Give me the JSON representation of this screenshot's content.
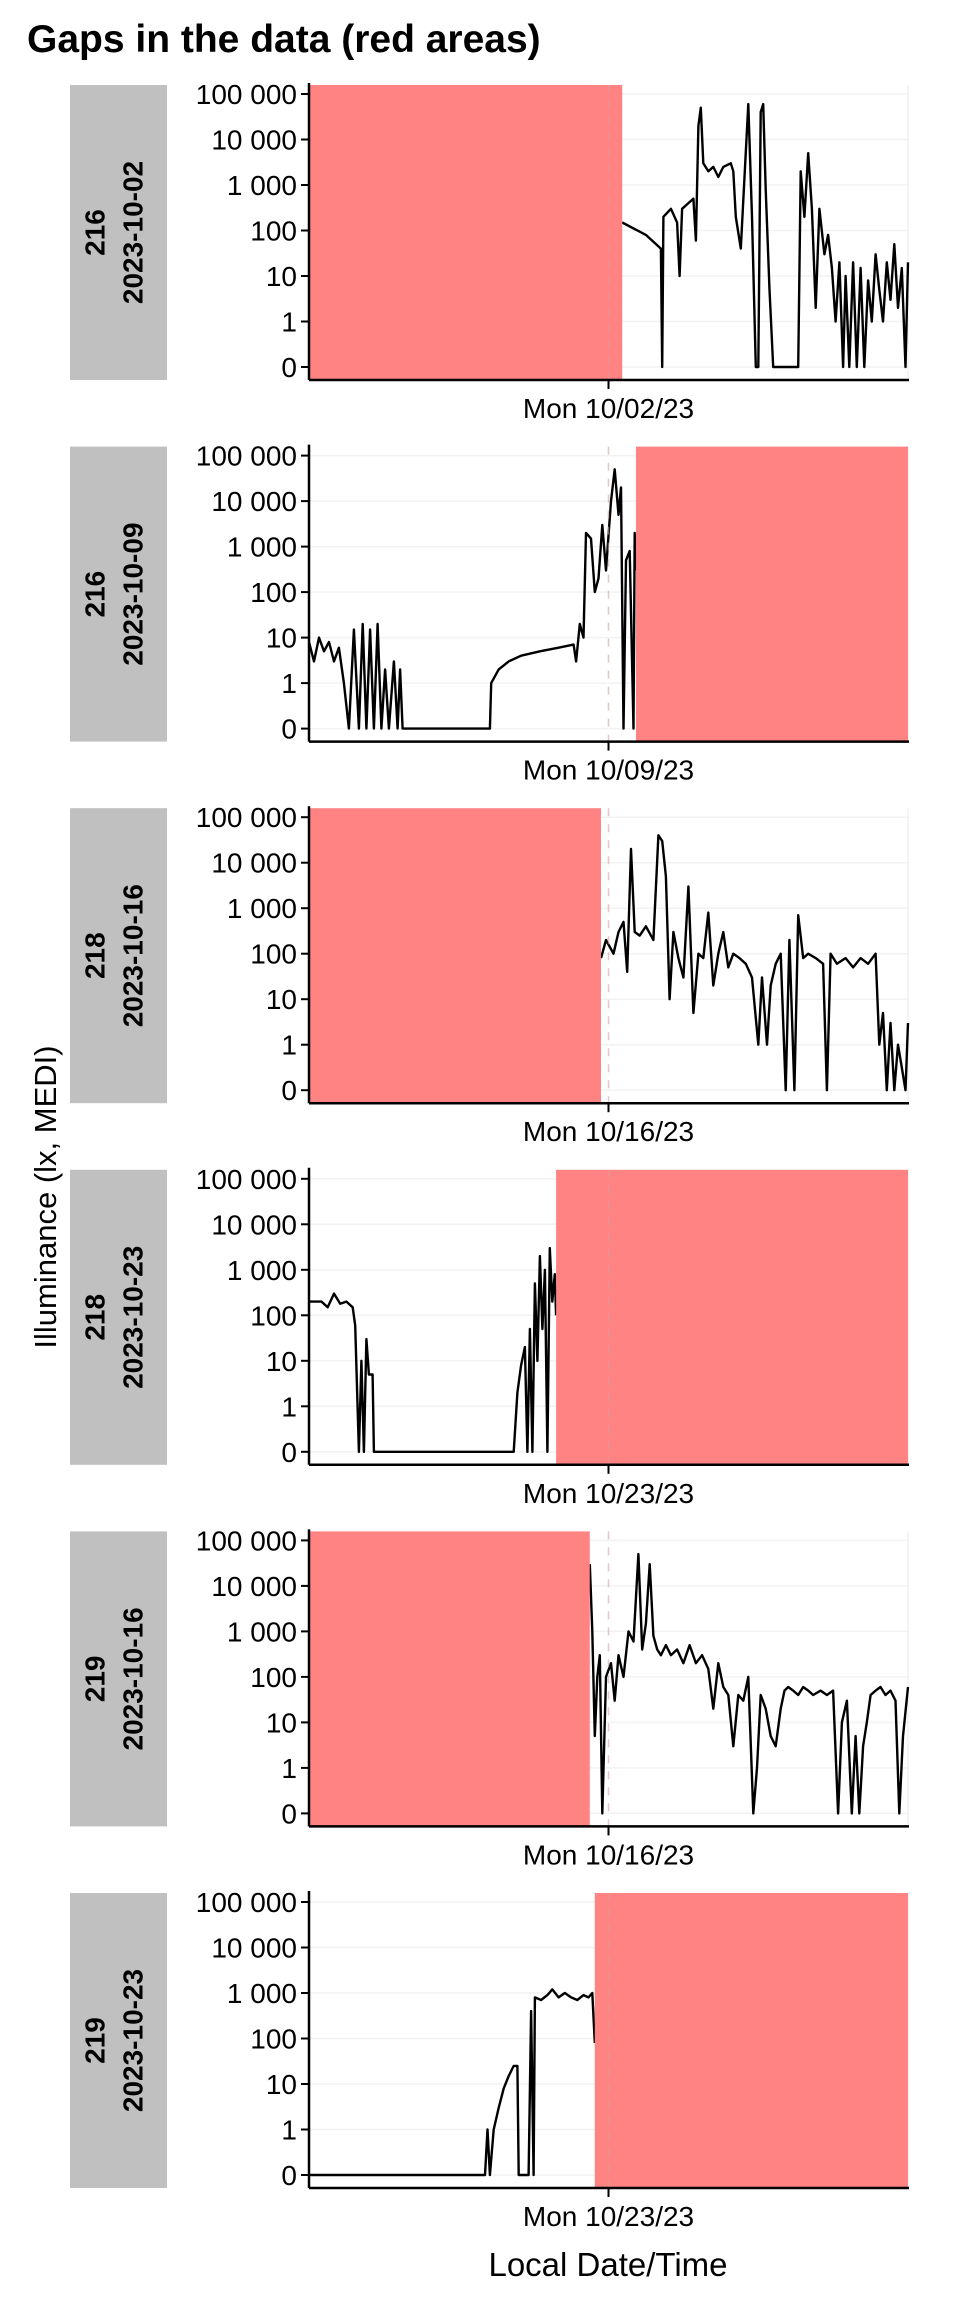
{
  "chart_data": {
    "type": "line",
    "title": "Gaps in the data (red areas)",
    "xlabel": "Local Date/Time",
    "ylabel": "Illuminance (lx, MEDI)",
    "y_scale": "symlog",
    "y_ticks": [
      0,
      1,
      10,
      100,
      1000,
      10000,
      100000
    ],
    "y_tick_labels": [
      "0",
      "1",
      "10",
      "100",
      "1 000",
      "10 000",
      "100 000"
    ],
    "x_units": "hours relative to Monday 00:00",
    "xlim": [
      -24,
      24
    ],
    "grid": "horizontal major",
    "gap_color": "#ff7f7f",
    "line_color": "#000000",
    "strip_color": "#c0c0c0",
    "panels": [
      {
        "id": "216",
        "date": "2023-10-02",
        "x_tick_label": "Mon 10/02/23",
        "gaps": [
          [
            -24,
            1.1
          ]
        ],
        "series": [
          [
            1.1,
            150
          ],
          [
            3,
            80
          ],
          [
            4.2,
            40
          ],
          [
            4.3,
            0
          ],
          [
            4.4,
            200
          ],
          [
            5,
            300
          ],
          [
            5.5,
            150
          ],
          [
            5.7,
            10
          ],
          [
            5.9,
            300
          ],
          [
            6.4,
            400
          ],
          [
            6.8,
            500
          ],
          [
            7,
            60
          ],
          [
            7.2,
            20000
          ],
          [
            7.4,
            50000
          ],
          [
            7.6,
            3000
          ],
          [
            8,
            2000
          ],
          [
            8.4,
            2500
          ],
          [
            8.8,
            1500
          ],
          [
            9.2,
            2500
          ],
          [
            9.8,
            3000
          ],
          [
            10,
            2000
          ],
          [
            10.2,
            200
          ],
          [
            10.6,
            40
          ],
          [
            10.9,
            1500
          ],
          [
            11.2,
            60000
          ],
          [
            11.5,
            200
          ],
          [
            11.8,
            0
          ],
          [
            12,
            0
          ],
          [
            12.2,
            40000
          ],
          [
            12.4,
            60000
          ],
          [
            12.6,
            800
          ],
          [
            12.9,
            5
          ],
          [
            13.2,
            0
          ],
          [
            14.4,
            0
          ],
          [
            15.2,
            0
          ],
          [
            15.4,
            2000
          ],
          [
            15.7,
            200
          ],
          [
            16,
            5000
          ],
          [
            16.3,
            300
          ],
          [
            16.6,
            2
          ],
          [
            16.9,
            300
          ],
          [
            17.3,
            30
          ],
          [
            17.6,
            80
          ],
          [
            17.9,
            15
          ],
          [
            18.2,
            1
          ],
          [
            18.5,
            20
          ],
          [
            18.8,
            0
          ],
          [
            19,
            10
          ],
          [
            19.3,
            0
          ],
          [
            19.6,
            20
          ],
          [
            19.9,
            0
          ],
          [
            20.2,
            15
          ],
          [
            20.5,
            0
          ],
          [
            20.8,
            8
          ],
          [
            21.1,
            1
          ],
          [
            21.4,
            30
          ],
          [
            21.7,
            5
          ],
          [
            22,
            1
          ],
          [
            22.3,
            20
          ],
          [
            22.6,
            3
          ],
          [
            22.9,
            50
          ],
          [
            23.2,
            2
          ],
          [
            23.5,
            15
          ],
          [
            23.8,
            0
          ],
          [
            24,
            20
          ]
        ]
      },
      {
        "id": "216",
        "date": "2023-10-09",
        "x_tick_label": "Mon 10/09/23",
        "gaps": [
          [
            2.2,
            24
          ]
        ],
        "series": [
          [
            -24,
            8
          ],
          [
            -23.6,
            3
          ],
          [
            -23.2,
            10
          ],
          [
            -22.8,
            5
          ],
          [
            -22.4,
            8
          ],
          [
            -22,
            3
          ],
          [
            -21.6,
            6
          ],
          [
            -21.2,
            1
          ],
          [
            -20.8,
            0
          ],
          [
            -20.4,
            15
          ],
          [
            -20,
            0
          ],
          [
            -19.7,
            20
          ],
          [
            -19.4,
            0
          ],
          [
            -19.1,
            15
          ],
          [
            -18.8,
            0
          ],
          [
            -18.5,
            20
          ],
          [
            -18.2,
            0
          ],
          [
            -17.9,
            2
          ],
          [
            -17.6,
            0
          ],
          [
            -17.2,
            3
          ],
          [
            -16.9,
            0
          ],
          [
            -16.7,
            2
          ],
          [
            -16.5,
            0
          ],
          [
            -9.5,
            0
          ],
          [
            -9.4,
            1
          ],
          [
            -8.8,
            2
          ],
          [
            -8,
            3
          ],
          [
            -7,
            4
          ],
          [
            -5.5,
            5
          ],
          [
            -4,
            6
          ],
          [
            -2.8,
            7
          ],
          [
            -2.6,
            3
          ],
          [
            -2.3,
            20
          ],
          [
            -2,
            10
          ],
          [
            -1.8,
            2000
          ],
          [
            -1.4,
            1500
          ],
          [
            -1.1,
            100
          ],
          [
            -0.8,
            200
          ],
          [
            -0.5,
            3000
          ],
          [
            -0.2,
            300
          ],
          [
            0.2,
            10000
          ],
          [
            0.5,
            50000
          ],
          [
            0.8,
            5000
          ],
          [
            1,
            20000
          ],
          [
            1.2,
            0
          ],
          [
            1.4,
            500
          ],
          [
            1.7,
            800
          ],
          [
            2,
            0
          ],
          [
            2.1,
            2000
          ],
          [
            2.2,
            300
          ]
        ]
      },
      {
        "id": "218",
        "date": "2023-10-16",
        "x_tick_label": "Mon 10/16/23",
        "gaps": [
          [
            -24,
            -0.6
          ]
        ],
        "series": [
          [
            -0.6,
            80
          ],
          [
            -0.2,
            200
          ],
          [
            0.4,
            100
          ],
          [
            0.8,
            300
          ],
          [
            1.2,
            500
          ],
          [
            1.5,
            40
          ],
          [
            1.8,
            20000
          ],
          [
            2.1,
            300
          ],
          [
            2.5,
            250
          ],
          [
            3,
            400
          ],
          [
            3.6,
            200
          ],
          [
            4,
            40000
          ],
          [
            4.3,
            30000
          ],
          [
            4.6,
            5000
          ],
          [
            4.9,
            10
          ],
          [
            5.2,
            300
          ],
          [
            5.6,
            80
          ],
          [
            6,
            30
          ],
          [
            6.4,
            3000
          ],
          [
            6.8,
            5
          ],
          [
            7.2,
            100
          ],
          [
            7.6,
            80
          ],
          [
            8,
            800
          ],
          [
            8.4,
            20
          ],
          [
            8.8,
            100
          ],
          [
            9.2,
            300
          ],
          [
            9.6,
            50
          ],
          [
            10,
            100
          ],
          [
            10.5,
            80
          ],
          [
            11,
            60
          ],
          [
            11.5,
            30
          ],
          [
            12,
            1
          ],
          [
            12.3,
            30
          ],
          [
            12.7,
            1
          ],
          [
            13,
            20
          ],
          [
            13.4,
            60
          ],
          [
            13.8,
            100
          ],
          [
            14.2,
            0
          ],
          [
            14.5,
            200
          ],
          [
            14.9,
            0
          ],
          [
            15.2,
            700
          ],
          [
            15.6,
            80
          ],
          [
            16,
            100
          ],
          [
            16.6,
            80
          ],
          [
            17.2,
            60
          ],
          [
            17.5,
            0
          ],
          [
            17.8,
            100
          ],
          [
            18.3,
            60
          ],
          [
            19,
            80
          ],
          [
            19.6,
            50
          ],
          [
            20.2,
            80
          ],
          [
            20.8,
            60
          ],
          [
            21.4,
            100
          ],
          [
            21.7,
            1
          ],
          [
            22,
            5
          ],
          [
            22.3,
            0
          ],
          [
            22.6,
            3
          ],
          [
            22.9,
            0
          ],
          [
            23.2,
            1
          ],
          [
            23.5,
            0.5
          ],
          [
            23.8,
            0
          ],
          [
            24,
            3
          ]
        ]
      },
      {
        "id": "218",
        "date": "2023-10-23",
        "x_tick_label": "Mon 10/23/23",
        "gaps": [
          [
            -4.2,
            24
          ]
        ],
        "series": [
          [
            -24,
            200
          ],
          [
            -23,
            200
          ],
          [
            -22.5,
            150
          ],
          [
            -22,
            300
          ],
          [
            -21.5,
            180
          ],
          [
            -21,
            200
          ],
          [
            -20.5,
            150
          ],
          [
            -20.3,
            60
          ],
          [
            -20,
            0
          ],
          [
            -19.8,
            10
          ],
          [
            -19.6,
            0
          ],
          [
            -19.4,
            30
          ],
          [
            -19.2,
            5
          ],
          [
            -18.9,
            5
          ],
          [
            -18.8,
            0
          ],
          [
            -7.6,
            0
          ],
          [
            -7.3,
            2
          ],
          [
            -7,
            8
          ],
          [
            -6.7,
            20
          ],
          [
            -6.5,
            0
          ],
          [
            -6.3,
            50
          ],
          [
            -6.1,
            0
          ],
          [
            -5.9,
            500
          ],
          [
            -5.7,
            10
          ],
          [
            -5.5,
            2000
          ],
          [
            -5.3,
            50
          ],
          [
            -5.1,
            1000
          ],
          [
            -4.9,
            0
          ],
          [
            -4.7,
            3000
          ],
          [
            -4.5,
            200
          ],
          [
            -4.3,
            800
          ],
          [
            -4.2,
            100
          ]
        ]
      },
      {
        "id": "219",
        "date": "2023-10-16",
        "x_tick_label": "Mon 10/16/23",
        "gaps": [
          [
            -24,
            -1.5
          ]
        ],
        "series": [
          [
            -1.5,
            30000
          ],
          [
            -1.3,
            1000
          ],
          [
            -1.1,
            5
          ],
          [
            -0.9,
            100
          ],
          [
            -0.7,
            300
          ],
          [
            -0.5,
            0
          ],
          [
            -0.2,
            100
          ],
          [
            0.2,
            200
          ],
          [
            0.5,
            30
          ],
          [
            0.8,
            300
          ],
          [
            1.2,
            100
          ],
          [
            1.6,
            1000
          ],
          [
            2,
            600
          ],
          [
            2.4,
            50000
          ],
          [
            2.7,
            400
          ],
          [
            3,
            1500
          ],
          [
            3.3,
            30000
          ],
          [
            3.6,
            800
          ],
          [
            3.9,
            400
          ],
          [
            4.2,
            300
          ],
          [
            4.6,
            500
          ],
          [
            5,
            300
          ],
          [
            5.5,
            400
          ],
          [
            6,
            200
          ],
          [
            6.5,
            500
          ],
          [
            7,
            200
          ],
          [
            7.5,
            300
          ],
          [
            8,
            150
          ],
          [
            8.4,
            20
          ],
          [
            8.8,
            200
          ],
          [
            9.2,
            60
          ],
          [
            9.6,
            40
          ],
          [
            10,
            3
          ],
          [
            10.4,
            40
          ],
          [
            10.8,
            30
          ],
          [
            11.2,
            100
          ],
          [
            11.6,
            0
          ],
          [
            11.9,
            1
          ],
          [
            12.2,
            40
          ],
          [
            12.6,
            20
          ],
          [
            13,
            5
          ],
          [
            13.4,
            3
          ],
          [
            13.8,
            20
          ],
          [
            14.1,
            50
          ],
          [
            14.4,
            60
          ],
          [
            14.8,
            50
          ],
          [
            15.2,
            40
          ],
          [
            15.6,
            60
          ],
          [
            16,
            50
          ],
          [
            16.4,
            40
          ],
          [
            17,
            50
          ],
          [
            17.5,
            40
          ],
          [
            18,
            50
          ],
          [
            18.4,
            0
          ],
          [
            18.7,
            10
          ],
          [
            19.1,
            30
          ],
          [
            19.5,
            0
          ],
          [
            19.8,
            5
          ],
          [
            20.1,
            0
          ],
          [
            20.4,
            3
          ],
          [
            20.7,
            10
          ],
          [
            21,
            40
          ],
          [
            21.4,
            50
          ],
          [
            21.8,
            60
          ],
          [
            22.2,
            40
          ],
          [
            22.6,
            50
          ],
          [
            23,
            30
          ],
          [
            23.3,
            0
          ],
          [
            23.6,
            5
          ],
          [
            24,
            60
          ]
        ]
      },
      {
        "id": "219",
        "date": "2023-10-23",
        "x_tick_label": "Mon 10/23/23",
        "gaps": [
          [
            -1.1,
            24
          ]
        ],
        "series": [
          [
            -24,
            0
          ],
          [
            -9.9,
            0
          ],
          [
            -9.7,
            1
          ],
          [
            -9.5,
            0
          ],
          [
            -9.2,
            1
          ],
          [
            -8.8,
            3
          ],
          [
            -8.4,
            8
          ],
          [
            -8,
            15
          ],
          [
            -7.6,
            25
          ],
          [
            -7.3,
            25
          ],
          [
            -7.2,
            0
          ],
          [
            -6.4,
            0
          ],
          [
            -6.2,
            400
          ],
          [
            -6,
            0
          ],
          [
            -5.9,
            800
          ],
          [
            -5.4,
            700
          ],
          [
            -4.9,
            900
          ],
          [
            -4.5,
            1200
          ],
          [
            -4,
            800
          ],
          [
            -3.5,
            1000
          ],
          [
            -3,
            800
          ],
          [
            -2.5,
            700
          ],
          [
            -2,
            900
          ],
          [
            -1.6,
            800
          ],
          [
            -1.3,
            1000
          ],
          [
            -1.1,
            80
          ]
        ]
      }
    ]
  }
}
